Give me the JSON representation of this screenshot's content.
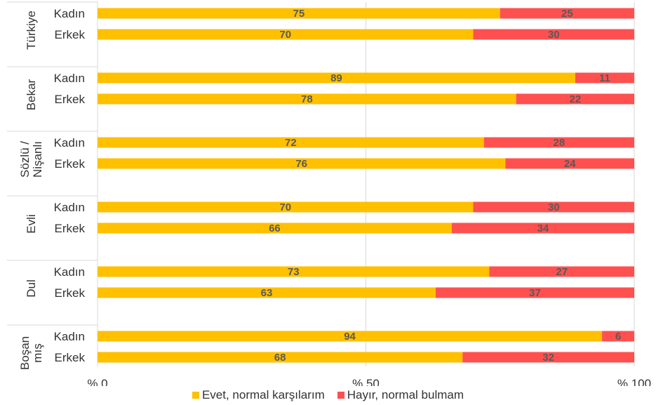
{
  "chart_data": {
    "type": "bar",
    "orientation": "horizontal",
    "stacked": true,
    "groups": [
      {
        "name": "Türkiye",
        "lines": [
          "Türkiye"
        ],
        "rows": [
          {
            "label": "Kadın",
            "values": [
              75,
              25
            ]
          },
          {
            "label": "Erkek",
            "values": [
              70,
              30
            ]
          }
        ]
      },
      {
        "name": "Bekar",
        "lines": [
          "Bekar"
        ],
        "rows": [
          {
            "label": "Kadın",
            "values": [
              89,
              11
            ]
          },
          {
            "label": "Erkek",
            "values": [
              78,
              22
            ]
          }
        ]
      },
      {
        "name": "Sözlü / Nişanlı",
        "lines": [
          "Sözlü /",
          "Nişanlı"
        ],
        "rows": [
          {
            "label": "Kadın",
            "values": [
              72,
              28
            ]
          },
          {
            "label": "Erkek",
            "values": [
              76,
              24
            ]
          }
        ]
      },
      {
        "name": "Evli",
        "lines": [
          "Evli"
        ],
        "rows": [
          {
            "label": "Kadın",
            "values": [
              70,
              30
            ]
          },
          {
            "label": "Erkek",
            "values": [
              66,
              34
            ]
          }
        ]
      },
      {
        "name": "Dul",
        "lines": [
          "Dul"
        ],
        "rows": [
          {
            "label": "Kadın",
            "values": [
              73,
              27
            ]
          },
          {
            "label": "Erkek",
            "values": [
              63,
              37
            ]
          }
        ]
      },
      {
        "name": "Boşanmış",
        "lines": [
          "Boşan",
          "mış"
        ],
        "rows": [
          {
            "label": "Kadın",
            "values": [
              94,
              6
            ]
          },
          {
            "label": "Erkek",
            "values": [
              68,
              32
            ]
          }
        ]
      }
    ],
    "series": [
      {
        "name": "Evet, normal karşılarım",
        "color": "#FFC000"
      },
      {
        "name": "Hayır, normal bulmam",
        "color": "#FF5050"
      }
    ],
    "x_ticks": [
      {
        "value": 0,
        "label": "% 0"
      },
      {
        "value": 50,
        "label": "% 50"
      },
      {
        "value": 100,
        "label": "% 100"
      }
    ],
    "xlim": [
      0,
      100
    ],
    "grid": true,
    "legend_position": "bottom",
    "value_label_color": "#595959"
  }
}
